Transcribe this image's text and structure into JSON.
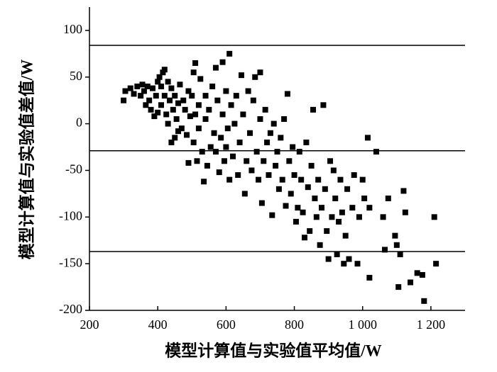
{
  "chart_data": {
    "type": "scatter",
    "x_label": "模型计算值与实验值平均值/W",
    "y_label": "模型计算值与实验值差值/W",
    "xlim": [
      200,
      1300
    ],
    "ylim": [
      -200,
      125
    ],
    "xticks": [
      200,
      400,
      600,
      800,
      {
        "value": 1000,
        "label": "1 000"
      },
      {
        "value": 1200,
        "label": "1 200"
      }
    ],
    "yticks": [
      100,
      50,
      0,
      -50,
      -100,
      -150,
      -200
    ],
    "reference_lines": [
      84,
      -29,
      -137
    ],
    "color": "#000000",
    "x": [
      300,
      305,
      320,
      330,
      340,
      350,
      355,
      360,
      365,
      370,
      375,
      380,
      385,
      390,
      395,
      400,
      400,
      405,
      410,
      410,
      415,
      420,
      420,
      425,
      430,
      430,
      435,
      440,
      440,
      445,
      450,
      450,
      455,
      460,
      460,
      465,
      470,
      475,
      480,
      485,
      490,
      490,
      495,
      500,
      505,
      505,
      510,
      510,
      515,
      520,
      520,
      525,
      530,
      535,
      540,
      540,
      545,
      550,
      555,
      560,
      565,
      570,
      570,
      575,
      580,
      585,
      590,
      590,
      595,
      600,
      600,
      605,
      610,
      610,
      615,
      620,
      625,
      630,
      635,
      640,
      645,
      650,
      655,
      660,
      665,
      670,
      675,
      680,
      685,
      690,
      695,
      700,
      700,
      705,
      710,
      715,
      720,
      725,
      730,
      735,
      740,
      745,
      750,
      755,
      760,
      765,
      770,
      775,
      780,
      785,
      790,
      795,
      800,
      805,
      810,
      815,
      820,
      825,
      830,
      835,
      840,
      845,
      850,
      855,
      860,
      865,
      870,
      875,
      880,
      885,
      890,
      895,
      900,
      905,
      910,
      915,
      920,
      925,
      930,
      935,
      940,
      945,
      950,
      955,
      960,
      970,
      975,
      985,
      990,
      1000,
      1005,
      1015,
      1020,
      1020,
      1040,
      1060,
      1065,
      1075,
      1095,
      1100,
      1105,
      1110,
      1120,
      1125,
      1140,
      1160,
      1175,
      1180,
      1210,
      1215
    ],
    "y": [
      25,
      35,
      38,
      32,
      40,
      30,
      42,
      35,
      20,
      40,
      25,
      15,
      38,
      8,
      30,
      45,
      12,
      50,
      40,
      20,
      55,
      58,
      30,
      10,
      45,
      0,
      25,
      -20,
      38,
      15,
      -15,
      30,
      5,
      22,
      -8,
      42,
      -5,
      25,
      15,
      -12,
      35,
      -42,
      8,
      30,
      -20,
      55,
      65,
      10,
      -40,
      20,
      -5,
      48,
      -30,
      -62,
      5,
      30,
      -45,
      15,
      -25,
      40,
      -10,
      60,
      -30,
      25,
      -52,
      -15,
      66,
      10,
      -40,
      -25,
      35,
      -5,
      75,
      -60,
      20,
      -35,
      0,
      30,
      -55,
      -20,
      52,
      10,
      -75,
      -40,
      35,
      -10,
      -50,
      25,
      50,
      -30,
      -60,
      5,
      55,
      -85,
      -40,
      15,
      -20,
      -55,
      -10,
      -98,
      0,
      -45,
      -30,
      -70,
      -15,
      -60,
      5,
      -88,
      32,
      -40,
      -75,
      -25,
      -55,
      -105,
      -90,
      -30,
      -60,
      -95,
      -122,
      -20,
      -68,
      -115,
      -45,
      15,
      -80,
      -100,
      -60,
      -130,
      -90,
      20,
      -70,
      -115,
      -145,
      -40,
      -100,
      -50,
      -80,
      -140,
      -105,
      -60,
      -95,
      -150,
      -120,
      -70,
      -145,
      -90,
      -55,
      -150,
      -100,
      -60,
      -80,
      -15,
      -165,
      -90,
      -30,
      -100,
      -135,
      -80,
      -120,
      -130,
      -175,
      -140,
      -72,
      -95,
      -170,
      -160,
      -162,
      -190,
      -100,
      -150
    ]
  }
}
